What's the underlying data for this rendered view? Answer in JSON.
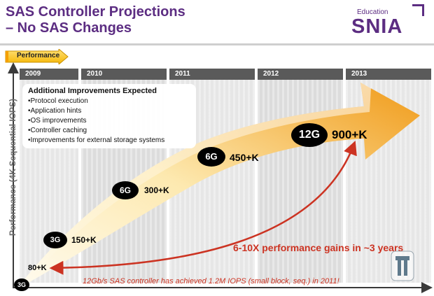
{
  "slide": {
    "title_line1": "SAS Controller Projections",
    "title_line2": "– No SAS Changes",
    "logo_small": "Education",
    "logo_big": "SNIA",
    "performance_tag": "Performance",
    "y_axis_label": "Performance (4K Sequential IOPS)",
    "years": [
      "2009",
      "2010",
      "2011",
      "2012",
      "2013"
    ],
    "improvements_title": "Additional Improvements Expected",
    "improvements": [
      "Protocol execution",
      "Application hints",
      "OS improvements",
      "Controller caching",
      "Improvements for external storage systems"
    ],
    "milestones": [
      {
        "badge": "3G",
        "value": "150+K"
      },
      {
        "badge": "6G",
        "value": "300+K"
      },
      {
        "badge": "6G",
        "value": "450+K"
      },
      {
        "badge": "12G",
        "value": "900+K"
      }
    ],
    "baseline_badge": "3G",
    "baseline_value": "80+K",
    "gains_text": "6-10X performance gains in ~3 years",
    "achieved_text": "12Gb/s SAS controller has achieved 1.2M IOPS (small block, seq.) in 2011!",
    "colors": {
      "title": "#5c2d82",
      "accent_red": "#cc3322",
      "arrow_light": "#fff6d8",
      "arrow_dark": "#f0a020"
    }
  }
}
